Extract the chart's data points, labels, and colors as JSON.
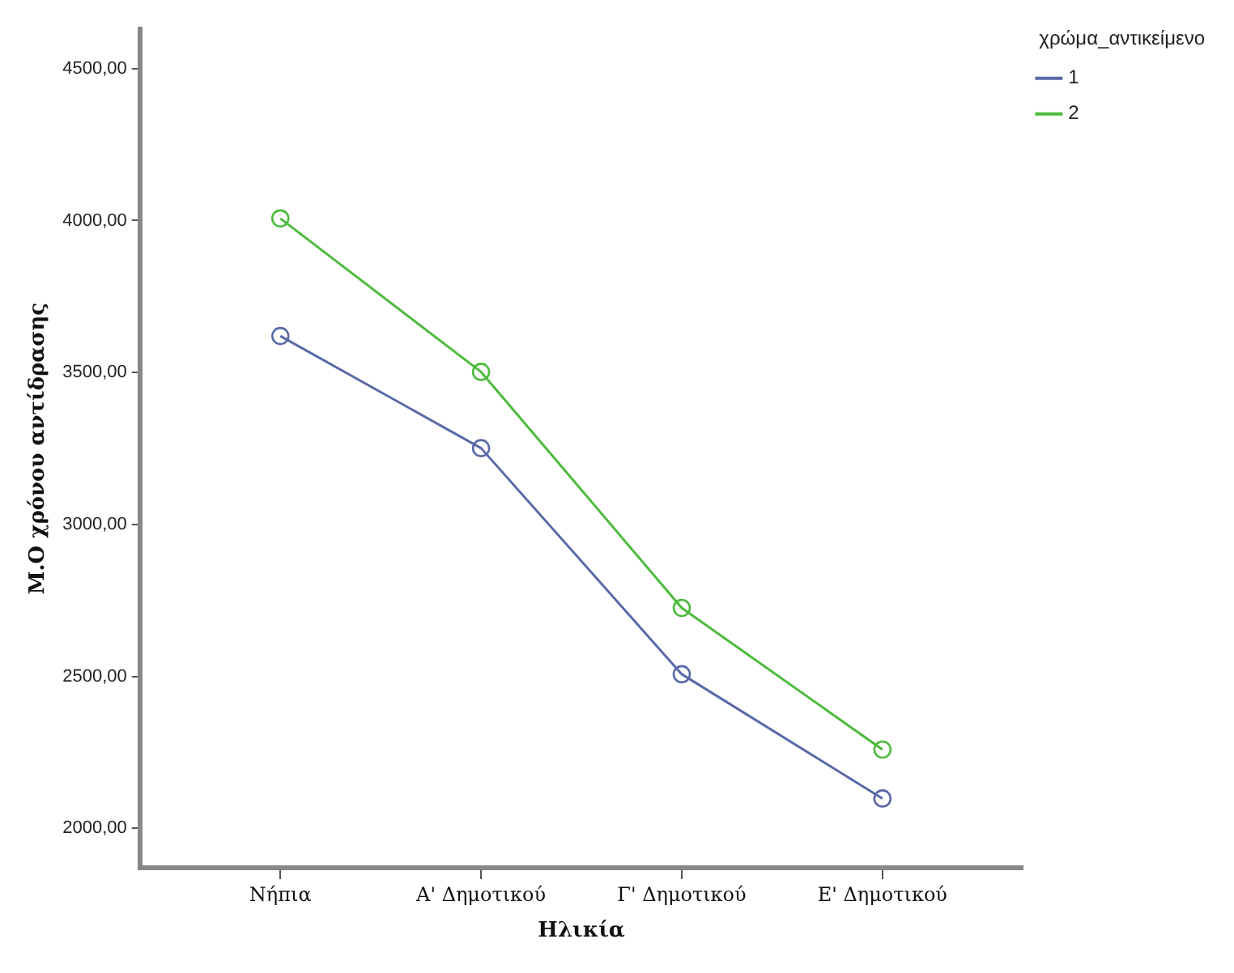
{
  "chart_data": {
    "type": "line",
    "xlabel": "Ηλικία",
    "ylabel": "Μ.Ο χρόνου αντίδρασης",
    "legend_title": "χρώμα_αντικείμενο",
    "categories": [
      "Νήπια",
      "Α' Δημοτικού",
      "Γ' Δημοτικού",
      "Ε' Δημοτικού"
    ],
    "series": [
      {
        "name": "1",
        "color": "#5b69a8",
        "values": [
          3620,
          3251,
          2507,
          2098
        ]
      },
      {
        "name": "2",
        "color": "#4cbb3c",
        "values": [
          4007,
          3502,
          2725,
          2259
        ]
      }
    ],
    "ylim": [
      1870,
      4630
    ],
    "yticks": [
      {
        "value": 2000,
        "label": "2000,00"
      },
      {
        "value": 2500,
        "label": "2500,00"
      },
      {
        "value": 3000,
        "label": "3000,00"
      },
      {
        "value": 3500,
        "label": "3500,00"
      },
      {
        "value": 4000,
        "label": "4000,00"
      },
      {
        "value": 4500,
        "label": "4500,00"
      }
    ],
    "grid": false,
    "legend": "top right",
    "marker": "circle"
  }
}
